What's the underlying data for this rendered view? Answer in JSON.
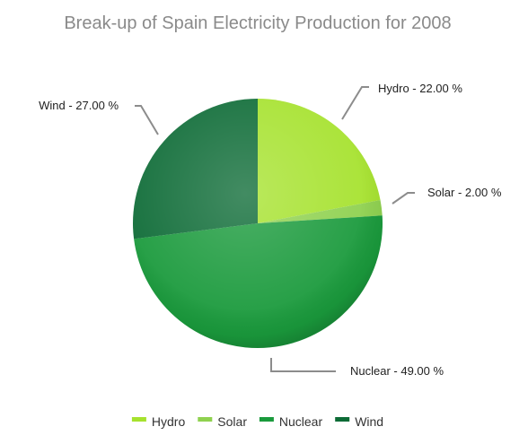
{
  "chart_data": {
    "type": "pie",
    "title": "Break-up of Spain Electricity Production for 2008",
    "categories": [
      "Hydro",
      "Solar",
      "Nuclear",
      "Wind"
    ],
    "values": [
      22.0,
      2.0,
      49.0,
      27.0
    ],
    "data_labels": [
      "Hydro - 22.00 %",
      "Solar - 2.00 %",
      "Nuclear - 49.00 %",
      "Wind - 27.00 %"
    ],
    "colors": [
      "#a6e22e",
      "#8fd14f",
      "#1a9a3c",
      "#0d6b36"
    ],
    "start_angle": "12 o'clock",
    "direction": "clockwise",
    "legend": {
      "position": "bottom",
      "items": [
        "Hydro",
        "Solar",
        "Nuclear",
        "Wind"
      ]
    }
  }
}
